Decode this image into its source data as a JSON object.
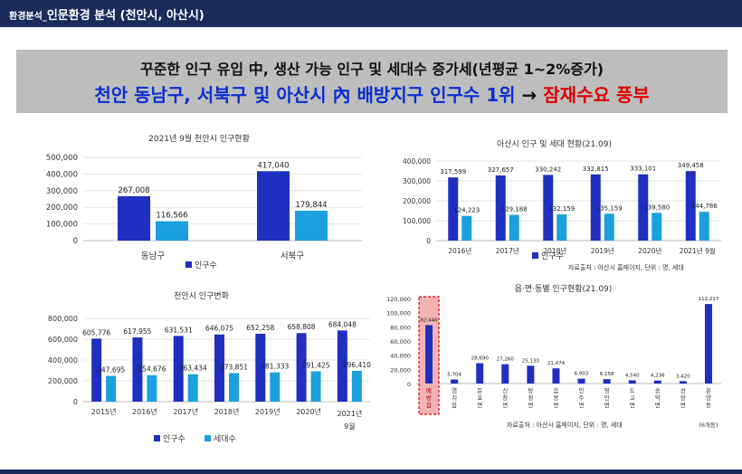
{
  "header": {
    "section_label": "환경분석_",
    "title": "인문환경 분석 (천안시, 아산시)"
  },
  "banner": {
    "line1": "꾸준한 인구 유입 中, 생산 가능 인구 및 세대수 증가세(년평균 1~2%증가)",
    "line2_main": "천안 동남구, 서북구 및 아산시 內 배방지구 인구수 1위",
    "line2_arrow": "→",
    "line2_highlight": "잠재수요 풍부"
  },
  "colors": {
    "dark_blue": "#1f2fc0",
    "light_blue": "#1aa0dc",
    "header": "#1a2b5c",
    "highlight_red": "#e00000"
  },
  "chart_data": [
    {
      "id": "cheonan-2021-09",
      "type": "bar",
      "title": "2021년 9월 천안시 인구현황",
      "categories": [
        "동남구",
        "서북구"
      ],
      "series": [
        {
          "name": "인구수",
          "values": [
            267008,
            417040
          ]
        },
        {
          "name": "",
          "values": [
            116566,
            179844
          ]
        }
      ],
      "value_labels": [
        [
          "267,008",
          "417,040"
        ],
        [
          "116,566",
          "179,844"
        ]
      ],
      "ylim": [
        0,
        500000
      ],
      "yticks": [
        "0",
        "100,000",
        "200,000",
        "300,000",
        "400,000",
        "500,000"
      ],
      "legend": [
        "인구수"
      ]
    },
    {
      "id": "asan-pop-households",
      "type": "bar",
      "title": "아산시 인구 및 세대 현황(21.09)",
      "categories": [
        "2016년",
        "2017년",
        "2018년",
        "2019년",
        "2020년",
        "2021년 9월"
      ],
      "series": [
        {
          "name": "인구수",
          "values": [
            317599,
            327657,
            330242,
            332815,
            333101,
            349458
          ]
        },
        {
          "name": "",
          "values": [
            124223,
            129188,
            132159,
            135159,
            139580,
            144786
          ]
        }
      ],
      "value_labels": [
        [
          "317,599",
          "327,657",
          "330,242",
          "332,815",
          "333,101",
          "349,458"
        ],
        [
          "124,223",
          "129,188",
          "132,159",
          "135,159",
          "139,580",
          "144,786"
        ]
      ],
      "ylim": [
        0,
        400000
      ],
      "yticks": [
        "0",
        "100,000",
        "200,000",
        "300,000",
        "400,000"
      ],
      "legend": [
        "인구수"
      ],
      "source": "자료출처 : 아산시 홈페이지, 단위 : 명, 세대"
    },
    {
      "id": "cheonan-change",
      "type": "bar",
      "title": "천안시 인구변화",
      "categories": [
        "2015년",
        "2016년",
        "2017년",
        "2018년",
        "2019년",
        "2020년",
        "2021년 9월"
      ],
      "series": [
        {
          "name": "인구수",
          "values": [
            605776,
            617955,
            631531,
            646075,
            652258,
            658808,
            684048
          ]
        },
        {
          "name": "세대수",
          "values": [
            247695,
            254676,
            263434,
            273851,
            281333,
            291425,
            296410
          ]
        }
      ],
      "value_labels": [
        [
          "605,776",
          "617,955",
          "631,531",
          "646,075",
          "652,258",
          "658,808",
          "684,048"
        ],
        [
          "247,695",
          "254,676",
          "263,434",
          "273,851",
          "281,333",
          "291,425",
          "296,410"
        ]
      ],
      "ylim": [
        0,
        800000
      ],
      "yticks": [
        "0",
        "200,000",
        "400,000",
        "600,000",
        "800,000"
      ],
      "legend": [
        "인구수",
        "세대수"
      ]
    },
    {
      "id": "asan-districts",
      "type": "bar",
      "title": "읍·면·동별 인구현황(21.09)",
      "categories": [
        "배방읍",
        "염치읍",
        "둔포면",
        "신창면",
        "탕정면",
        "음봉면",
        "인주면",
        "영인면",
        "도고면",
        "송악면",
        "선장면",
        "온양동"
      ],
      "category_note": "(6개동)",
      "series": [
        {
          "name": "인구수",
          "values": [
            82446,
            5704,
            28690,
            27260,
            25130,
            21474,
            6903,
            6158,
            4540,
            4236,
            3420,
            112217
          ]
        }
      ],
      "value_labels": [
        [
          "82,446",
          "5,704",
          "28,690",
          "27,260",
          "25,130",
          "21,474",
          "6,903",
          "6,158",
          "4,540",
          "4,236",
          "3,420",
          "112,217"
        ]
      ],
      "highlight_index": 0,
      "ylim": [
        0,
        120000
      ],
      "yticks": [
        "0",
        "20,000",
        "40,000",
        "60,000",
        "80,000",
        "100,000",
        "120,000"
      ],
      "source": "자료출처 : 아산시 홈페이지, 단위 : 명, 세대"
    }
  ]
}
